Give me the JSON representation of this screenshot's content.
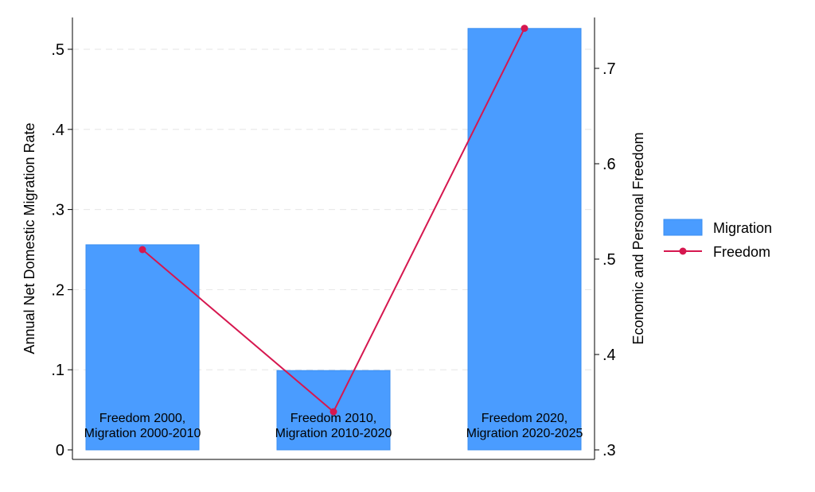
{
  "chart_data": {
    "type": "bar+line",
    "categories": [
      "Freedom 2000,\nMigration 2000-2010",
      "Freedom 2010,\nMigration 2010-2020",
      "Freedom 2020,\nMigration 2020-2025"
    ],
    "category_lines": [
      [
        "Freedom 2000,",
        "Migration 2000-2010"
      ],
      [
        "Freedom 2010,",
        "Migration 2010-2020"
      ],
      [
        "Freedom 2020,",
        "Migration 2020-2025"
      ]
    ],
    "series": [
      {
        "name": "Migration",
        "type": "bar",
        "axis": "left",
        "values": [
          0.256,
          0.099,
          0.526
        ],
        "color": "#4a9cff"
      },
      {
        "name": "Freedom",
        "type": "line",
        "axis": "right",
        "values": [
          0.51,
          0.34,
          0.742
        ],
        "color": "#d6174f"
      }
    ],
    "ylabel": "Annual Net Domestic Migration Rate",
    "y2label": "Economic and Personal Freedom",
    "ylim": [
      0,
      0.53
    ],
    "y2lim": [
      0.3,
      0.75
    ],
    "yticks": [
      0,
      0.1,
      0.2,
      0.3,
      0.4,
      0.5
    ],
    "ytick_labels": [
      "0",
      ".1",
      ".2",
      ".3",
      ".4",
      ".5"
    ],
    "y2ticks": [
      0.3,
      0.4,
      0.5,
      0.6,
      0.7
    ],
    "y2tick_labels": [
      ".3",
      ".4",
      ".5",
      ".6",
      ".7"
    ],
    "grid": true,
    "legend": "right"
  }
}
